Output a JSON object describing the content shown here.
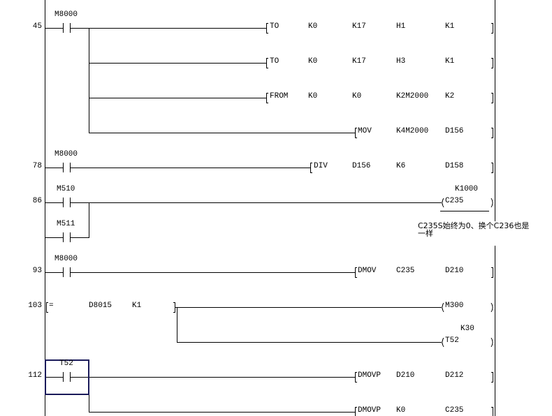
{
  "rungs": [
    {
      "step": "45",
      "contact": "M8000",
      "outputs": [
        {
          "instr": "TO",
          "operands": [
            "K0",
            "K17",
            "H1",
            "K1"
          ]
        },
        {
          "instr": "TO",
          "operands": [
            "K0",
            "K17",
            "H3",
            "K1"
          ]
        },
        {
          "instr": "FROM",
          "operands": [
            "K0",
            "K0",
            "K2M2000",
            "K2"
          ]
        },
        {
          "instr": "MOV",
          "operands": [
            "K4M2000",
            "D156"
          ]
        }
      ]
    },
    {
      "step": "78",
      "contact": "M8000",
      "outputs": [
        {
          "instr": "DIV",
          "operands": [
            "D156",
            "K6",
            "D158"
          ]
        }
      ]
    },
    {
      "step": "86",
      "contact": "M510",
      "contact2": "M511",
      "coil": {
        "name": "C235",
        "setting": "K1000"
      },
      "comment": "C235S始终为0、换个C236也是一样"
    },
    {
      "step": "93",
      "contact": "M8000",
      "outputs": [
        {
          "instr": "DMOV",
          "operands": [
            "C235",
            "D210"
          ]
        }
      ]
    },
    {
      "step": "103",
      "compare": {
        "op": "=",
        "operands": [
          "D8015",
          "K1"
        ]
      },
      "coils": [
        {
          "name": "M300"
        },
        {
          "name": "T52",
          "setting": "K30"
        }
      ]
    },
    {
      "step": "112",
      "contact": "T52",
      "outputs": [
        {
          "instr": "DMOVP",
          "operands": [
            "D210",
            "D212"
          ]
        },
        {
          "instr": "DMOVP",
          "operands": [
            "K0",
            "C235"
          ]
        }
      ]
    }
  ],
  "colors": {
    "line": "#000000",
    "selection": "#1a1a5a",
    "background": "#ffffff"
  }
}
